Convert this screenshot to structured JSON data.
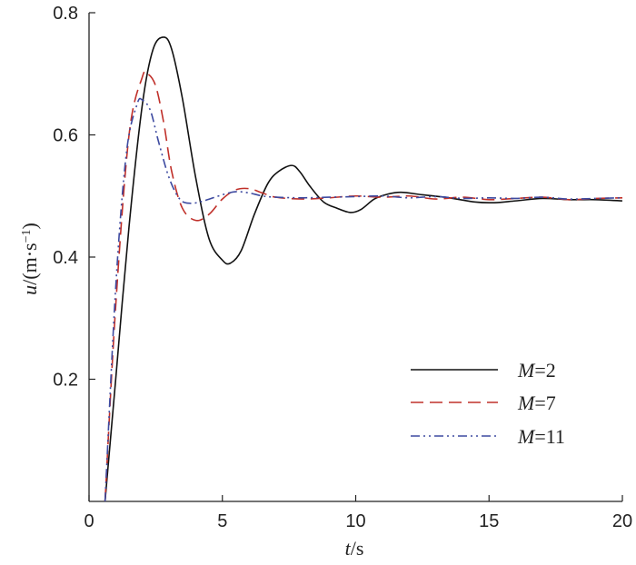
{
  "chart_data": {
    "type": "line",
    "title": "",
    "xlabel": {
      "var": "t",
      "unit": "/s"
    },
    "ylabel": {
      "var": "u",
      "unit_pre": "/(m·s",
      "unit_sup": "−1",
      "unit_post": ")"
    },
    "xlim": [
      0,
      20
    ],
    "ylim": [
      0,
      0.8
    ],
    "xticks": [
      0,
      5,
      10,
      15,
      20
    ],
    "yticks": [
      0.2,
      0.4,
      0.6,
      0.8
    ],
    "xtick_labels": [
      "0",
      "5",
      "10",
      "15",
      "20"
    ],
    "ytick_labels": [
      "0.2",
      "0.4",
      "0.6",
      "0.8"
    ],
    "grid": false,
    "legend_position": "lower-right",
    "series": [
      {
        "name": "M=2",
        "legend_var": "M",
        "legend_value": "=2",
        "color": "#111111",
        "dash": "solid",
        "x": [
          0.6,
          1.0,
          1.5,
          2.0,
          2.4,
          2.8,
          3.1,
          3.5,
          4.0,
          4.5,
          5.0,
          5.3,
          5.7,
          6.2,
          6.7,
          7.1,
          7.6,
          7.9,
          8.3,
          8.8,
          9.3,
          9.8,
          10.2,
          10.7,
          11.2,
          11.7,
          12.5,
          13.5,
          14.5,
          15.2,
          16.0,
          17.0,
          18.0,
          19.0,
          20.0
        ],
        "y": [
          0.0,
          0.2,
          0.45,
          0.65,
          0.74,
          0.76,
          0.74,
          0.66,
          0.53,
          0.43,
          0.395,
          0.39,
          0.41,
          0.47,
          0.52,
          0.54,
          0.55,
          0.54,
          0.515,
          0.49,
          0.48,
          0.473,
          0.478,
          0.495,
          0.503,
          0.506,
          0.502,
          0.497,
          0.49,
          0.489,
          0.492,
          0.496,
          0.494,
          0.494,
          0.492
        ]
      },
      {
        "name": "M=7",
        "legend_var": "M",
        "legend_value": "=7",
        "color": "#c0302a",
        "dash": "dashed",
        "x": [
          0.6,
          1.0,
          1.5,
          2.0,
          2.2,
          2.5,
          2.8,
          3.1,
          3.5,
          4.0,
          4.5,
          5.0,
          5.5,
          6.0,
          6.5,
          7.0,
          8.0,
          9.0,
          10.0,
          11.0,
          12.0,
          13.0,
          14.0,
          15.0,
          16.0,
          17.0,
          18.0,
          19.0,
          20.0
        ],
        "y": [
          0.0,
          0.32,
          0.6,
          0.695,
          0.7,
          0.68,
          0.62,
          0.54,
          0.48,
          0.46,
          0.47,
          0.495,
          0.51,
          0.512,
          0.505,
          0.498,
          0.495,
          0.497,
          0.5,
          0.498,
          0.5,
          0.495,
          0.498,
          0.494,
          0.496,
          0.498,
          0.494,
          0.496,
          0.497
        ]
      },
      {
        "name": "M=11",
        "legend_var": "M",
        "legend_value": "=11",
        "color": "#3d4aa0",
        "dash": "dash-dot-dot",
        "x": [
          0.6,
          1.0,
          1.4,
          1.8,
          2.0,
          2.3,
          2.6,
          3.0,
          3.4,
          3.8,
          4.3,
          5.0,
          5.5,
          6.0,
          6.5,
          7.0,
          8.0,
          9.0,
          10.0,
          11.0,
          12.0,
          13.0,
          14.0,
          15.0,
          16.0,
          17.0,
          18.0,
          19.0,
          20.0
        ],
        "y": [
          0.0,
          0.35,
          0.57,
          0.65,
          0.657,
          0.64,
          0.59,
          0.53,
          0.495,
          0.488,
          0.492,
          0.502,
          0.507,
          0.505,
          0.5,
          0.498,
          0.497,
          0.498,
          0.499,
          0.5,
          0.497,
          0.499,
          0.496,
          0.497,
          0.496,
          0.498,
          0.495,
          0.496,
          0.497
        ]
      }
    ]
  }
}
